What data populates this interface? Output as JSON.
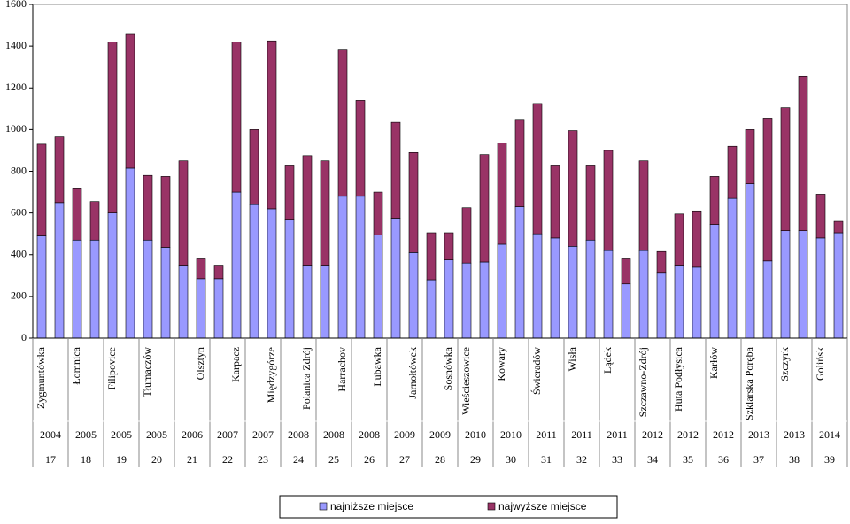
{
  "chart_data": {
    "type": "stacked-bar",
    "categories": [
      "Zygmuntówka",
      null,
      "Łomnica",
      null,
      "Filipovice",
      null,
      "Tłumaczów",
      null,
      null,
      "Olsztyn",
      null,
      "Karpacz",
      null,
      "Międzygórze",
      null,
      "Polanica Zdrój",
      null,
      "Harrachov",
      null,
      "Lubawka",
      null,
      "Jarnołtówek",
      null,
      "Sosnówka",
      "Wieścieszowice",
      null,
      "Kowary",
      null,
      "Świeradów",
      null,
      "Wisła",
      null,
      "Lądek",
      null,
      "Szczawno-Zdrój",
      null,
      "Huta Podłysica",
      null,
      "Karłów",
      null,
      "Szklarska Poręba",
      null,
      "Szczyrk",
      null,
      "Golińsk",
      null
    ],
    "years": [
      "2004",
      "2005",
      "2005",
      "2005",
      "2006",
      "2007",
      "2007",
      "2008",
      "2008",
      "2008",
      "2009",
      "2009",
      "2010",
      "2010",
      "2011",
      "2011",
      "2011",
      "2012",
      "2012",
      "2012",
      "2013",
      "2013",
      "2014"
    ],
    "editions": [
      "17",
      "18",
      "19",
      "20",
      "21",
      "22",
      "23",
      "24",
      "25",
      "26",
      "27",
      "28",
      "29",
      "30",
      "31",
      "32",
      "33",
      "34",
      "35",
      "36",
      "37",
      "38",
      "39"
    ],
    "series": [
      {
        "name": "najniższe miejsce",
        "color": "#9999ff",
        "values": [
          490,
          650,
          470,
          470,
          600,
          815,
          470,
          435,
          350,
          285,
          285,
          700,
          640,
          620,
          570,
          350,
          350,
          680,
          680,
          495,
          575,
          410,
          280,
          375,
          360,
          365,
          450,
          630,
          500,
          480,
          440,
          470,
          420,
          260,
          420,
          315,
          350,
          340,
          545,
          670,
          740,
          370,
          515,
          515,
          480,
          505
        ]
      },
      {
        "name": "najwyższe miejsce",
        "color": "#993366",
        "values": [
          440,
          315,
          250,
          185,
          820,
          645,
          310,
          340,
          500,
          95,
          65,
          720,
          360,
          805,
          260,
          525,
          500,
          705,
          460,
          205,
          460,
          480,
          225,
          130,
          265,
          515,
          485,
          415,
          625,
          350,
          555,
          360,
          480,
          120,
          430,
          100,
          245,
          270,
          230,
          250,
          260,
          685,
          590,
          740,
          210,
          55
        ]
      }
    ],
    "ylim": [
      0,
      1600
    ],
    "yticks": [
      0,
      200,
      400,
      600,
      800,
      1000,
      1200,
      1400,
      1600
    ],
    "legend": "bottom"
  }
}
